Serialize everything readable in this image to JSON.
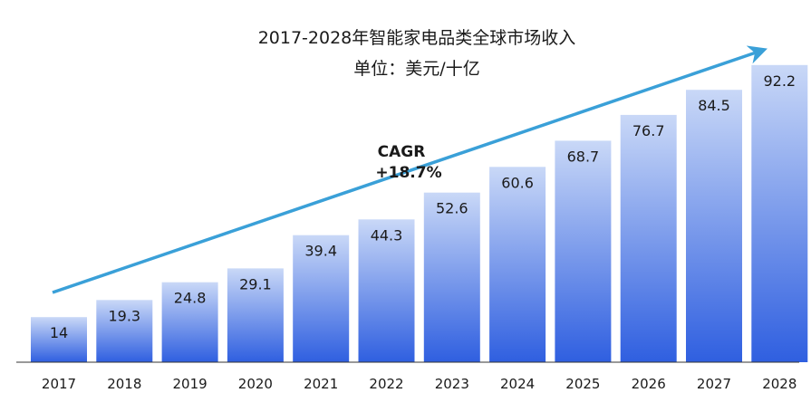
{
  "chart_data": {
    "type": "bar",
    "title": "2017-2028年智能家电品类全球市场收入",
    "subtitle": "单位：美元/十亿",
    "categories": [
      "2017",
      "2018",
      "2019",
      "2020",
      "2021",
      "2022",
      "2023",
      "2024",
      "2025",
      "2026",
      "2027",
      "2028"
    ],
    "values": [
      14,
      19.3,
      24.8,
      29.1,
      39.4,
      44.3,
      52.6,
      60.6,
      68.7,
      76.7,
      84.5,
      92.2
    ],
    "value_labels": [
      "14",
      "19.3",
      "24.8",
      "29.1",
      "39.4",
      "44.3",
      "52.6",
      "60.6",
      "68.7",
      "76.7",
      "84.5",
      "92.2"
    ],
    "ylim": [
      0,
      100
    ],
    "grid": false,
    "legend": "none",
    "annotation": {
      "line1": "CAGR",
      "line2": "+18.7%"
    },
    "colors": {
      "bar_top": "#c9d8f7",
      "bar_bottom": "#2f5fe0",
      "trend_arrow": "#3aa0d8",
      "axis": "#333333"
    }
  }
}
